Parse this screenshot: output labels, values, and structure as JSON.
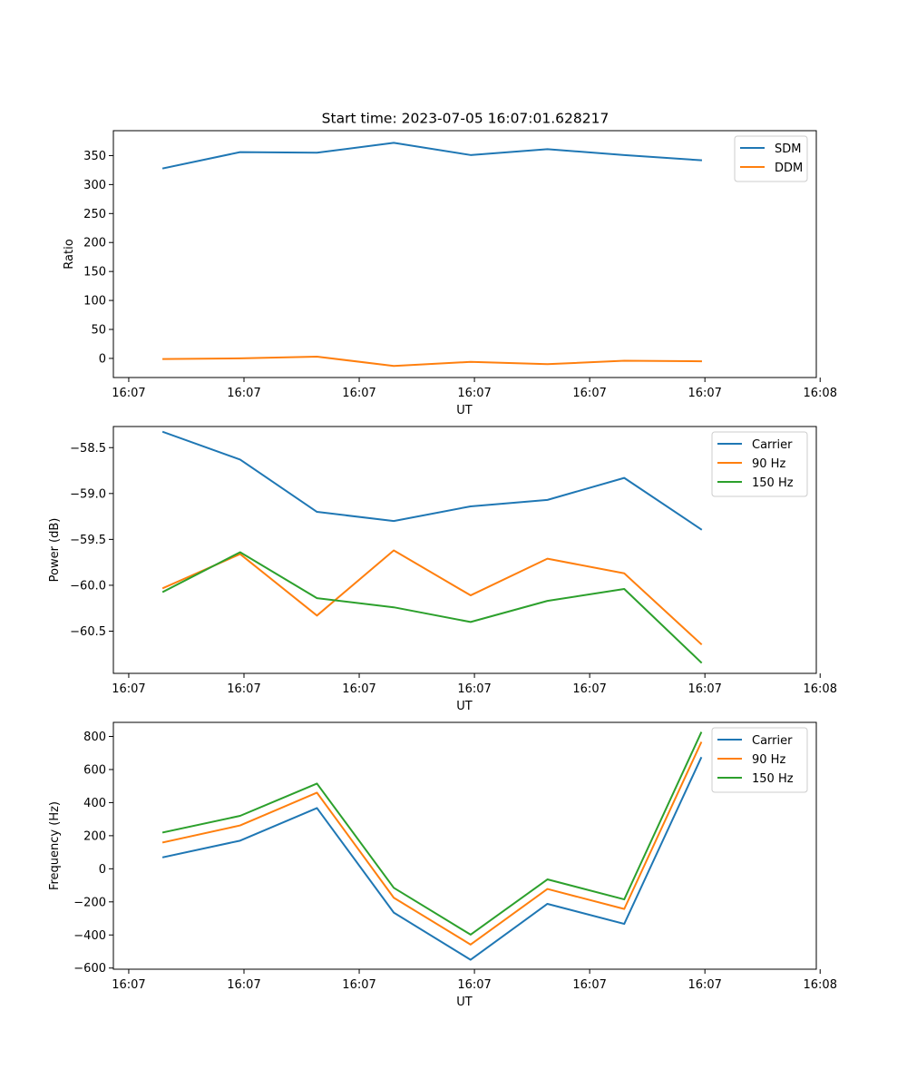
{
  "title": "Start time: 2023-07-05 16:07:01.628217",
  "chart_data": [
    {
      "type": "line",
      "title": "Start time: 2023-07-05 16:07:01.628217",
      "xlabel": "UT",
      "ylabel": "Ratio",
      "x": [
        1,
        2,
        3,
        4,
        5,
        6,
        7,
        8
      ],
      "xlim": [
        0.35,
        9.5
      ],
      "xticks": [
        0.55,
        2.05,
        3.55,
        5.05,
        6.55,
        8.05,
        9.55
      ],
      "xtick_labels": [
        "16:07",
        "16:07",
        "16:07",
        "16:07",
        "16:07",
        "16:07",
        "16:08"
      ],
      "ylim": [
        -33,
        393
      ],
      "yticks": [
        0,
        50,
        100,
        150,
        200,
        250,
        300,
        350
      ],
      "ytick_labels": [
        "0",
        "50",
        "100",
        "150",
        "200",
        "250",
        "300",
        "350"
      ],
      "legend": "top-right",
      "series": [
        {
          "name": "SDM",
          "color": "#1f77b4",
          "values": [
            328,
            356,
            355,
            372,
            351,
            361,
            351,
            342
          ]
        },
        {
          "name": "DDM",
          "color": "#ff7f0e",
          "values": [
            -1,
            0,
            3,
            -13,
            -6,
            -10,
            -4,
            -5
          ]
        }
      ]
    },
    {
      "type": "line",
      "xlabel": "UT",
      "ylabel": "Power (dB)",
      "x": [
        1,
        2,
        3,
        4,
        5,
        6,
        7,
        8
      ],
      "xlim": [
        0.35,
        9.5
      ],
      "xticks": [
        0.55,
        2.05,
        3.55,
        5.05,
        6.55,
        8.05,
        9.55
      ],
      "xtick_labels": [
        "16:07",
        "16:07",
        "16:07",
        "16:07",
        "16:07",
        "16:07",
        "16:08"
      ],
      "ylim": [
        -60.96,
        -58.27
      ],
      "yticks": [
        -58.5,
        -59.0,
        -59.5,
        -60.0,
        -60.5
      ],
      "ytick_labels": [
        "−58.5",
        "−59.0",
        "−59.5",
        "−60.0",
        "−60.5"
      ],
      "legend": "top-right",
      "series": [
        {
          "name": "Carrier",
          "color": "#1f77b4",
          "values": [
            -58.33,
            -58.63,
            -59.2,
            -59.3,
            -59.14,
            -59.07,
            -58.83,
            -59.39
          ]
        },
        {
          "name": "90 Hz",
          "color": "#ff7f0e",
          "values": [
            -60.03,
            -59.66,
            -60.33,
            -59.62,
            -60.11,
            -59.71,
            -59.87,
            -60.64
          ]
        },
        {
          "name": "150 Hz",
          "color": "#2ca02c",
          "values": [
            -60.07,
            -59.64,
            -60.14,
            -60.24,
            -60.4,
            -60.17,
            -60.04,
            -60.84
          ]
        }
      ]
    },
    {
      "type": "line",
      "xlabel": "UT",
      "ylabel": "Frequency (Hz)",
      "x": [
        1,
        2,
        3,
        4,
        5,
        6,
        7,
        8
      ],
      "xlim": [
        0.35,
        9.5
      ],
      "xticks": [
        0.55,
        2.05,
        3.55,
        5.05,
        6.55,
        8.05,
        9.55
      ],
      "xtick_labels": [
        "16:07",
        "16:07",
        "16:07",
        "16:07",
        "16:07",
        "16:07",
        "16:08"
      ],
      "ylim": [
        -607,
        885
      ],
      "yticks": [
        -600,
        -400,
        -200,
        0,
        200,
        400,
        600,
        800
      ],
      "ytick_labels": [
        "−600",
        "−400",
        "−200",
        "0",
        "200",
        "400",
        "600",
        "800"
      ],
      "legend": "top-right",
      "series": [
        {
          "name": "Carrier",
          "color": "#1f77b4",
          "values": [
            70,
            170,
            367,
            -265,
            -550,
            -212,
            -333,
            670
          ]
        },
        {
          "name": "90 Hz",
          "color": "#ff7f0e",
          "values": [
            160,
            262,
            460,
            -175,
            -458,
            -122,
            -243,
            762
          ]
        },
        {
          "name": "150 Hz",
          "color": "#2ca02c",
          "values": [
            220,
            320,
            515,
            -115,
            -398,
            -64,
            -185,
            822
          ]
        }
      ]
    }
  ]
}
